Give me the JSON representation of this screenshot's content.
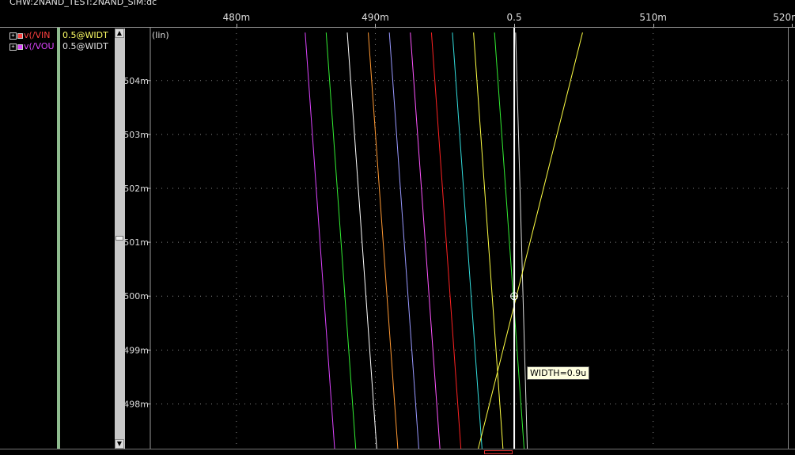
{
  "window": {
    "title": "CHW:2NAND_TEST:2NAND_SIM:dc"
  },
  "legend": {
    "entries": [
      {
        "name": "v(/VIN",
        "color": "#ff4040",
        "value": "0.5@WIDT",
        "value_color": "#ffff66"
      },
      {
        "name": "v(/VOU",
        "color": "#dd44ff",
        "value": "0.5@WIDT",
        "value_color": "#e0e0e0"
      }
    ]
  },
  "tooltip": {
    "text": "WIDTH=0.9u"
  },
  "chart_data": {
    "type": "line",
    "scale_label": "(lin)",
    "xlim": [
      0.4738,
      0.5197
    ],
    "ylim": [
      0.49717,
      0.50498
    ],
    "x_ticks": [
      0.48,
      0.49,
      0.5,
      0.51,
      0.52
    ],
    "x_tick_labels": [
      "480m",
      "490m",
      "0.5",
      "510m",
      "520m"
    ],
    "y_ticks": [
      0.498,
      0.499,
      0.5,
      0.501,
      0.502,
      0.503,
      0.504
    ],
    "y_tick_labels": [
      "498m",
      "499m",
      "500m",
      "501m",
      "502m",
      "503m",
      "504m"
    ],
    "grid": true,
    "cursor": {
      "x": 0.5,
      "y": 0.5
    },
    "series": [
      {
        "color": "#dd44ff",
        "x": [
          0.48495,
          0.48707
        ],
        "y": [
          0.50489,
          0.49717
        ]
      },
      {
        "color": "#33ee33",
        "x": [
          0.48646,
          0.48859
        ],
        "y": [
          0.50489,
          0.49717
        ]
      },
      {
        "color": "#ffffff",
        "x": [
          0.48798,
          0.4901
        ],
        "y": [
          0.50489,
          0.49717
        ]
      },
      {
        "color": "#ff9933",
        "x": [
          0.48949,
          0.49162
        ],
        "y": [
          0.50489,
          0.49717
        ]
      },
      {
        "color": "#9999ff",
        "x": [
          0.49101,
          0.49313
        ],
        "y": [
          0.50489,
          0.49717
        ]
      },
      {
        "color": "#ff55ff",
        "x": [
          0.49252,
          0.49465
        ],
        "y": [
          0.50489,
          0.49717
        ]
      },
      {
        "color": "#ff2222",
        "x": [
          0.49404,
          0.49616
        ],
        "y": [
          0.50489,
          0.49717
        ]
      },
      {
        "color": "#33dddd",
        "x": [
          0.49555,
          0.49768
        ],
        "y": [
          0.50489,
          0.49717
        ]
      },
      {
        "color": "#ffff44",
        "x": [
          0.49707,
          0.49919
        ],
        "y": [
          0.50489,
          0.49717
        ]
      },
      {
        "color": "#33ee33",
        "x": [
          0.49858,
          0.50071
        ],
        "y": [
          0.50489,
          0.49717
        ]
      },
      {
        "color": "#dddddd",
        "x": [
          0.5001,
          0.50094
        ],
        "y": [
          0.50489,
          0.49717
        ]
      },
      {
        "color": "#ffff44",
        "x": [
          0.49741,
          0.50492
        ],
        "y": [
          0.49717,
          0.50489
        ]
      }
    ]
  }
}
